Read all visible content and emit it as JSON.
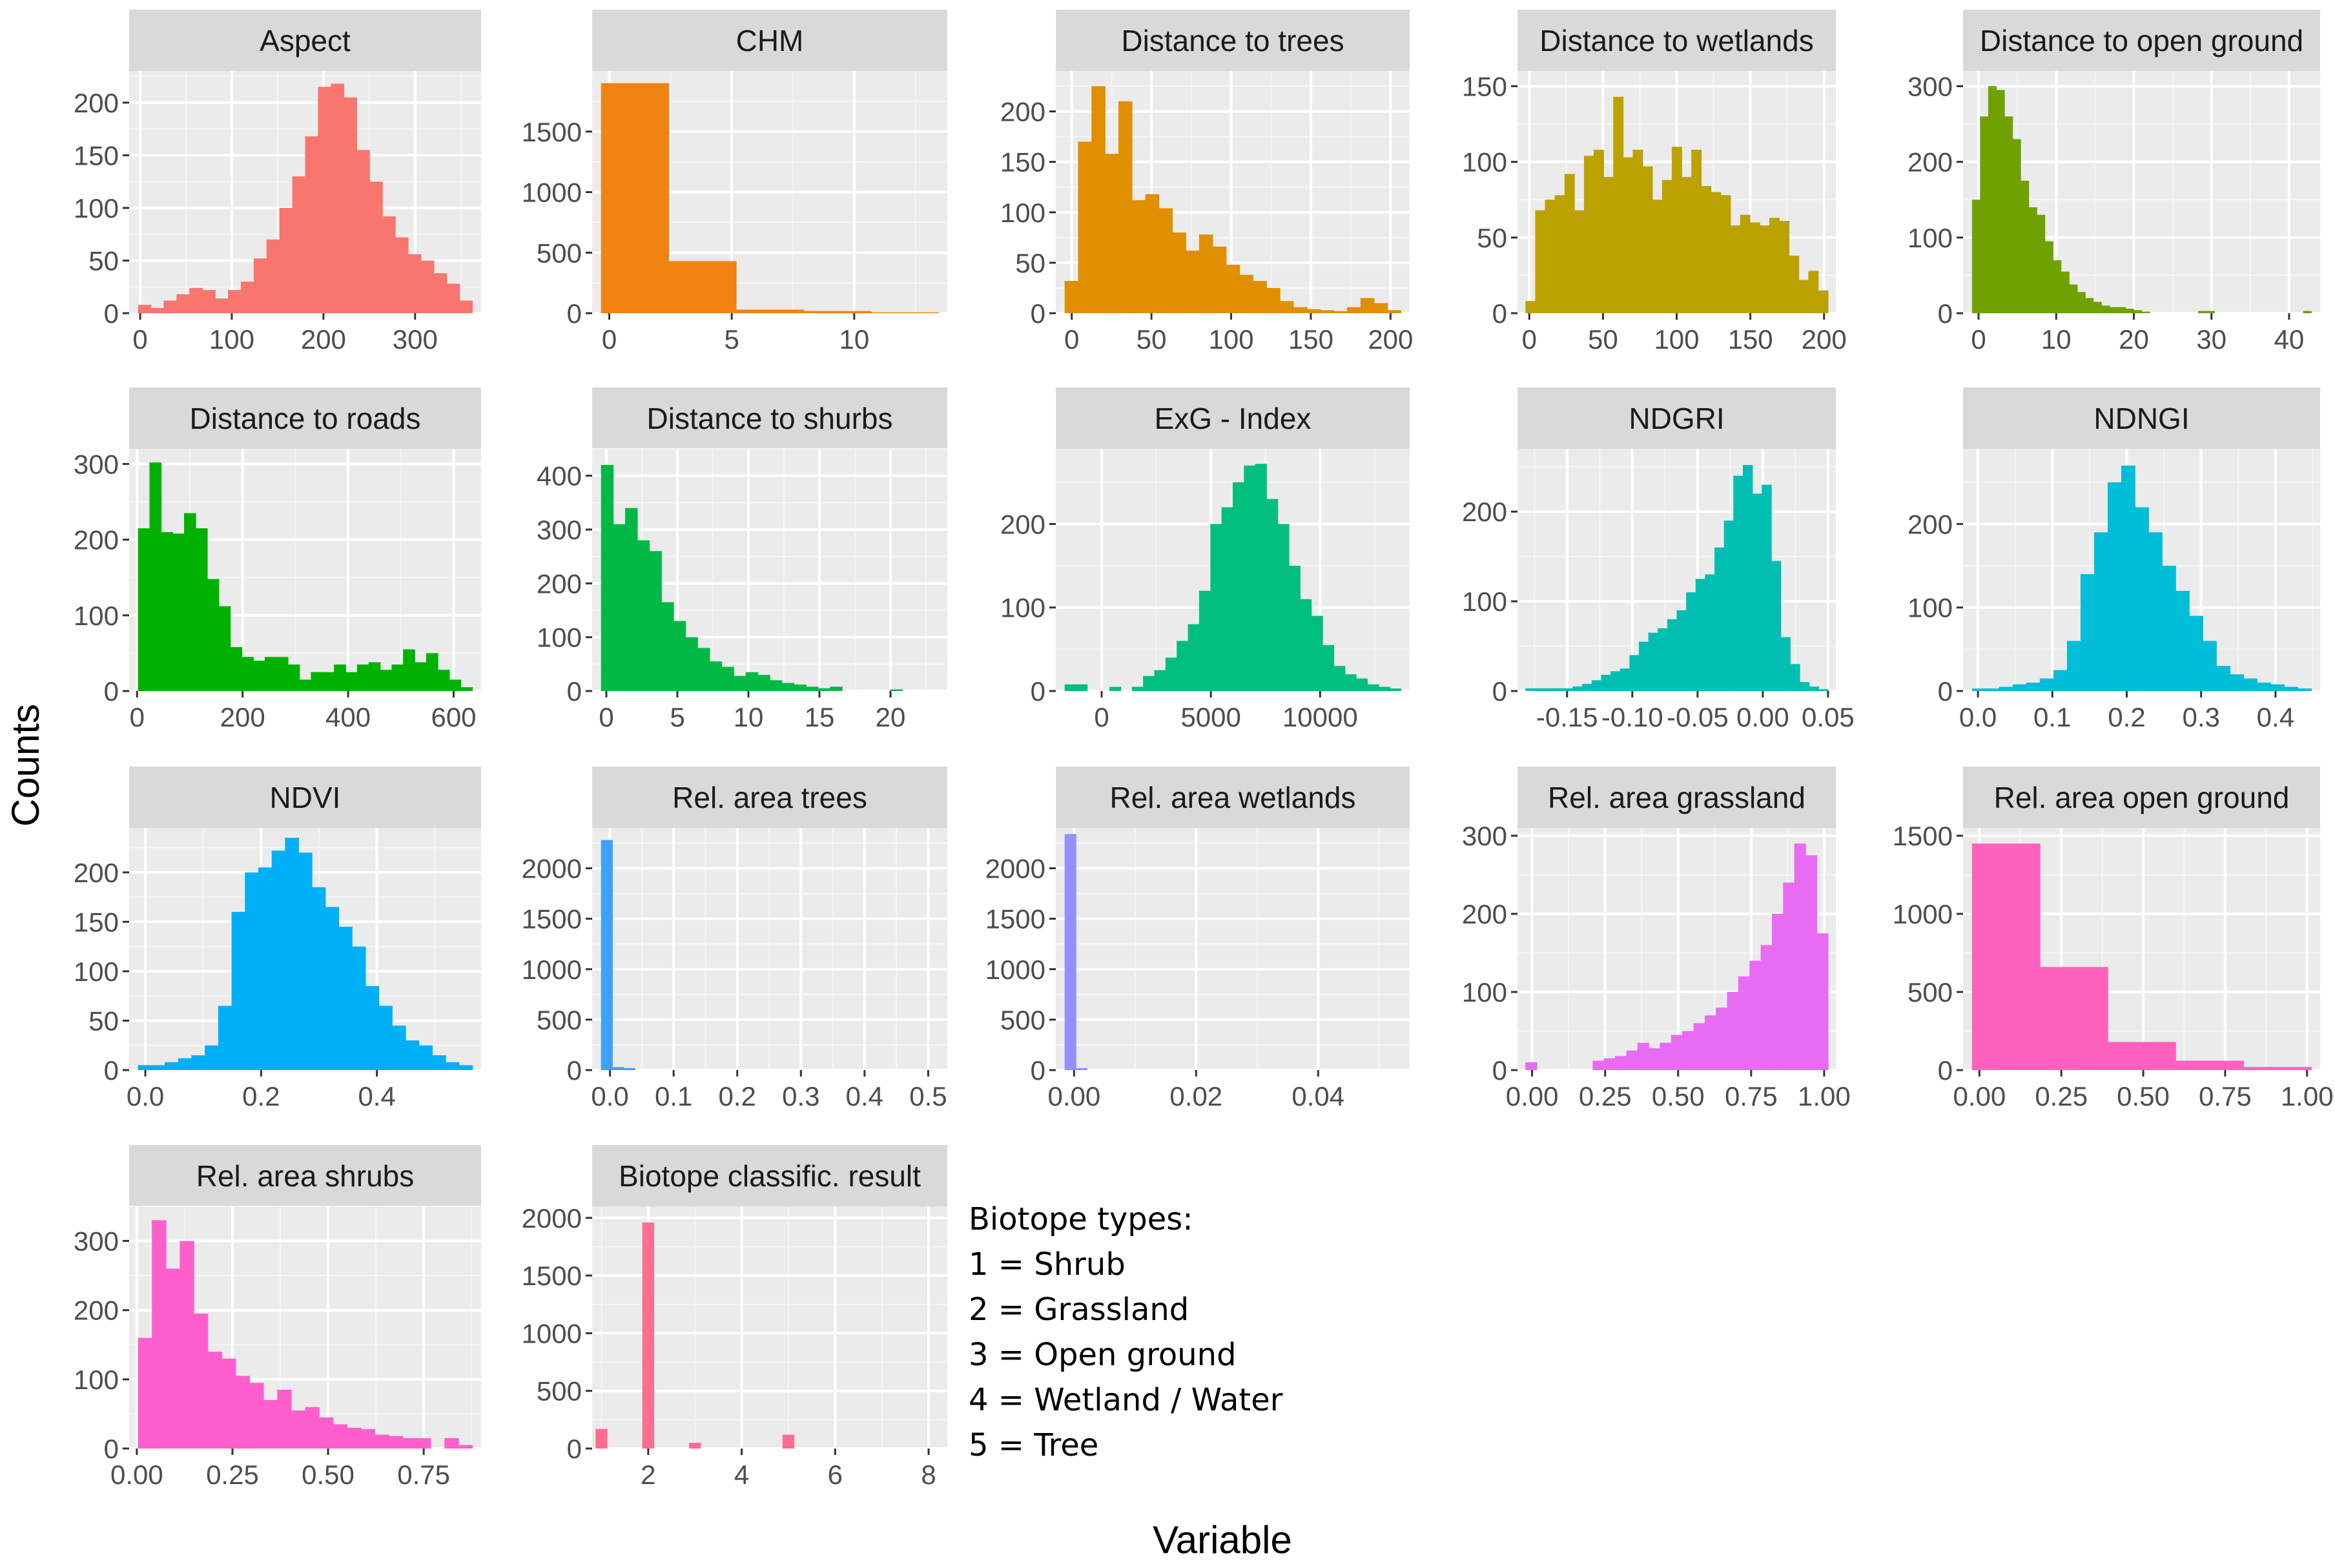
{
  "chart_data": [
    {
      "type": "bar",
      "title": "Aspect",
      "color": "#F8766D",
      "xlim": [
        -12,
        372
      ],
      "ylim": [
        0,
        230
      ],
      "xticks": [
        0,
        100,
        200,
        300
      ],
      "xtick_labels": [
        "0",
        "100",
        "200",
        "300"
      ],
      "yticks": [
        0,
        50,
        100,
        150,
        200
      ],
      "ytick_labels": [
        "0",
        "50",
        "100",
        "150",
        "200"
      ],
      "values": [
        8,
        5,
        12,
        18,
        24,
        22,
        14,
        22,
        30,
        52,
        70,
        100,
        130,
        168,
        215,
        218,
        205,
        155,
        125,
        92,
        72,
        56,
        50,
        38,
        28,
        12
      ]
    },
    {
      "type": "bar",
      "title": "CHM",
      "color": "#F08311",
      "xlim": [
        -0.7,
        13.8
      ],
      "ylim": [
        0,
        2000
      ],
      "xticks": [
        0,
        5,
        10
      ],
      "xtick_labels": [
        "0",
        "5",
        "10"
      ],
      "yticks": [
        0,
        500,
        1000,
        1500
      ],
      "ytick_labels": [
        "0",
        "500",
        "1000",
        "1500"
      ],
      "values": [
        1900,
        430,
        30,
        18,
        8
      ]
    },
    {
      "type": "bar",
      "title": "Distance to trees",
      "color": "#DF8F00",
      "xlim": [
        -10,
        212
      ],
      "ylim": [
        0,
        240
      ],
      "xticks": [
        0,
        50,
        100,
        150,
        200
      ],
      "xtick_labels": [
        "0",
        "50",
        "100",
        "150",
        "200"
      ],
      "yticks": [
        0,
        50,
        100,
        150,
        200
      ],
      "ytick_labels": [
        "0",
        "50",
        "100",
        "150",
        "200"
      ],
      "values": [
        32,
        170,
        225,
        158,
        210,
        112,
        118,
        104,
        80,
        62,
        78,
        66,
        48,
        38,
        32,
        25,
        12,
        6,
        4,
        3,
        2,
        6,
        15,
        10,
        3
      ]
    },
    {
      "type": "bar",
      "title": "Distance to wetlands",
      "color": "#BBA200",
      "xlim": [
        -8,
        208
      ],
      "ylim": [
        0,
        160
      ],
      "xticks": [
        0,
        50,
        100,
        150,
        200
      ],
      "xtick_labels": [
        "0",
        "50",
        "100",
        "150",
        "200"
      ],
      "yticks": [
        0,
        50,
        100,
        150
      ],
      "ytick_labels": [
        "0",
        "50",
        "100",
        "150"
      ],
      "values": [
        8,
        68,
        75,
        78,
        92,
        68,
        104,
        108,
        90,
        143,
        103,
        108,
        97,
        75,
        88,
        110,
        90,
        108,
        84,
        80,
        78,
        58,
        65,
        60,
        58,
        63,
        61,
        38,
        22,
        28,
        15
      ]
    },
    {
      "type": "bar",
      "title": "Distance to open ground",
      "color": "#6FA100",
      "xlim": [
        -2,
        44
      ],
      "ylim": [
        0,
        320
      ],
      "xticks": [
        0,
        10,
        20,
        30,
        40
      ],
      "xtick_labels": [
        "0",
        "10",
        "20",
        "30",
        "40"
      ],
      "yticks": [
        0,
        100,
        200,
        300
      ],
      "ytick_labels": [
        "0",
        "100",
        "200",
        "300"
      ],
      "values": [
        150,
        260,
        300,
        295,
        260,
        230,
        175,
        140,
        130,
        95,
        70,
        55,
        38,
        28,
        20,
        15,
        10,
        8,
        8,
        6,
        4,
        2,
        0,
        0,
        0,
        0,
        0,
        0,
        3,
        3,
        0,
        0,
        0,
        0,
        0,
        0,
        0,
        0,
        0,
        0,
        0,
        3
      ]
    },
    {
      "type": "bar",
      "title": "Distance to roads",
      "color": "#00B200",
      "xlim": [
        -15,
        652
      ],
      "ylim": [
        0,
        320
      ],
      "xticks": [
        0,
        200,
        400,
        600
      ],
      "xtick_labels": [
        "0",
        "200",
        "400",
        "600"
      ],
      "yticks": [
        0,
        100,
        200,
        300
      ],
      "ytick_labels": [
        "0",
        "100",
        "200",
        "300"
      ],
      "values": [
        215,
        302,
        210,
        208,
        235,
        215,
        148,
        112,
        58,
        45,
        40,
        45,
        45,
        35,
        15,
        25,
        25,
        35,
        25,
        35,
        38,
        28,
        35,
        55,
        38,
        50,
        28,
        15,
        5
      ]
    },
    {
      "type": "bar",
      "title": "Distance to shurbs",
      "color": "#00B945",
      "xlim": [
        -1,
        24
      ],
      "ylim": [
        0,
        450
      ],
      "xticks": [
        0,
        5,
        10,
        15,
        20
      ],
      "xtick_labels": [
        "0",
        "5",
        "10",
        "15",
        "20"
      ],
      "yticks": [
        0,
        100,
        200,
        300,
        400
      ],
      "ytick_labels": [
        "0",
        "100",
        "200",
        "300",
        "400"
      ],
      "values": [
        420,
        310,
        340,
        280,
        260,
        165,
        130,
        100,
        80,
        55,
        45,
        28,
        35,
        30,
        20,
        15,
        12,
        8,
        5,
        8,
        0,
        0,
        0,
        0,
        3,
        0,
        0,
        0
      ]
    },
    {
      "type": "bar",
      "title": "ExG - Index",
      "color": "#00BF7D",
      "xlim": [
        -2100,
        14100
      ],
      "ylim": [
        0,
        290
      ],
      "xticks": [
        0,
        5000,
        10000
      ],
      "xtick_labels": [
        "0",
        "5000",
        "10000"
      ],
      "yticks": [
        0,
        100,
        200
      ],
      "ytick_labels": [
        "0",
        "100",
        "200"
      ],
      "values": [
        8,
        8,
        0,
        0,
        5,
        0,
        5,
        18,
        25,
        40,
        60,
        80,
        120,
        200,
        220,
        250,
        270,
        272,
        230,
        200,
        150,
        110,
        90,
        55,
        30,
        20,
        15,
        8,
        5,
        3
      ]
    },
    {
      "type": "bar",
      "title": "NDGRI",
      "color": "#00BFB2",
      "xlim": [
        -0.188,
        0.056
      ],
      "ylim": [
        0,
        270
      ],
      "xticks": [
        -0.15,
        -0.1,
        -0.05,
        0.0,
        0.05
      ],
      "xtick_labels": [
        "-0.15",
        "-0.10",
        "-0.05",
        "0.00",
        "0.05"
      ],
      "yticks": [
        0,
        100,
        200
      ],
      "ytick_labels": [
        "0",
        "100",
        "200"
      ],
      "values": [
        3,
        3,
        3,
        3,
        3,
        5,
        8,
        12,
        18,
        22,
        25,
        40,
        55,
        65,
        70,
        80,
        90,
        110,
        125,
        130,
        160,
        190,
        240,
        252,
        220,
        230,
        145,
        60,
        30,
        10,
        5,
        2
      ]
    },
    {
      "type": "bar",
      "title": "NDNGI",
      "color": "#00BDD8",
      "xlim": [
        -0.02,
        0.46
      ],
      "ylim": [
        0,
        290
      ],
      "xticks": [
        0.0,
        0.1,
        0.2,
        0.3,
        0.4
      ],
      "xtick_labels": [
        "0.0",
        "0.1",
        "0.2",
        "0.3",
        "0.4"
      ],
      "yticks": [
        0,
        100,
        200
      ],
      "ytick_labels": [
        "0",
        "100",
        "200"
      ],
      "values": [
        3,
        3,
        5,
        8,
        10,
        15,
        25,
        60,
        140,
        190,
        250,
        270,
        220,
        190,
        150,
        120,
        90,
        60,
        30,
        20,
        15,
        10,
        8,
        5,
        3
      ]
    },
    {
      "type": "bar",
      "title": "NDVI",
      "color": "#00B0F6",
      "xlim": [
        -0.028,
        0.58
      ],
      "ylim": [
        0,
        245
      ],
      "xticks": [
        0.0,
        0.2,
        0.4
      ],
      "xtick_labels": [
        "0.0",
        "0.2",
        "0.4"
      ],
      "yticks": [
        0,
        50,
        100,
        150,
        200
      ],
      "ytick_labels": [
        "0",
        "50",
        "100",
        "150",
        "200"
      ],
      "values": [
        5,
        5,
        8,
        12,
        15,
        25,
        65,
        160,
        200,
        205,
        222,
        235,
        220,
        185,
        165,
        145,
        125,
        85,
        65,
        45,
        30,
        25,
        15,
        8,
        5
      ]
    },
    {
      "type": "bar",
      "title": "Rel. area trees",
      "color": "#3DA1FF",
      "xlim": [
        -0.028,
        0.53
      ],
      "ylim": [
        0,
        2400
      ],
      "xticks": [
        0.0,
        0.1,
        0.2,
        0.3,
        0.4,
        0.5
      ],
      "xtick_labels": [
        "0.0",
        "0.1",
        "0.2",
        "0.3",
        "0.4",
        "0.5"
      ],
      "yticks": [
        0,
        500,
        1000,
        1500,
        2000
      ],
      "ytick_labels": [
        "0",
        "500",
        "1000",
        "1500",
        "2000"
      ],
      "values": [
        2280,
        30,
        20
      ]
    },
    {
      "type": "bar",
      "title": "Rel. area wetlands",
      "color": "#9590FF",
      "xlim": [
        -0.003,
        0.055
      ],
      "ylim": [
        0,
        2400
      ],
      "xticks": [
        0,
        0.02,
        0.04
      ],
      "xtick_labels": [
        "0.00",
        "0.02",
        "0.04"
      ],
      "yticks": [
        0,
        500,
        1000,
        1500,
        2000
      ],
      "ytick_labels": [
        "0",
        "500",
        "1000",
        "1500",
        "2000"
      ],
      "values": [
        2340,
        20
      ]
    },
    {
      "type": "bar",
      "title": "Rel. area grassland",
      "color": "#E76BF3",
      "xlim": [
        -0.05,
        1.04
      ],
      "ylim": [
        0,
        310
      ],
      "xticks": [
        0.0,
        0.25,
        0.5,
        0.75,
        1.0
      ],
      "xtick_labels": [
        "0.00",
        "0.25",
        "0.50",
        "0.75",
        "1.00"
      ],
      "yticks": [
        0,
        100,
        200,
        300
      ],
      "ytick_labels": [
        "0",
        "100",
        "200",
        "300"
      ],
      "values": [
        10,
        0,
        0,
        0,
        0,
        0,
        12,
        15,
        18,
        25,
        35,
        28,
        35,
        45,
        50,
        60,
        70,
        80,
        100,
        120,
        140,
        160,
        200,
        240,
        290,
        275,
        175
      ]
    },
    {
      "type": "bar",
      "title": "Rel. area open ground",
      "color": "#FF62BC",
      "xlim": [
        -0.05,
        1.04
      ],
      "ylim": [
        0,
        1550
      ],
      "xticks": [
        0.0,
        0.25,
        0.5,
        0.75,
        1.0
      ],
      "xtick_labels": [
        "0.00",
        "0.25",
        "0.50",
        "0.75",
        "1.00"
      ],
      "yticks": [
        0,
        500,
        1000,
        1500
      ],
      "ytick_labels": [
        "0",
        "500",
        "1000",
        "1500"
      ],
      "values": [
        1450,
        660,
        180,
        60,
        20
      ]
    },
    {
      "type": "bar",
      "title": "Rel. area shrubs",
      "color": "#FF5FCD",
      "xlim": [
        -0.02,
        0.9
      ],
      "ylim": [
        0,
        350
      ],
      "xticks": [
        0.0,
        0.25,
        0.5,
        0.75
      ],
      "xtick_labels": [
        "0.00",
        "0.25",
        "0.50",
        "0.75"
      ],
      "yticks": [
        0,
        100,
        200,
        300
      ],
      "ytick_labels": [
        "0",
        "100",
        "200",
        "300"
      ],
      "values": [
        160,
        330,
        260,
        300,
        195,
        140,
        130,
        105,
        95,
        70,
        85,
        55,
        60,
        45,
        35,
        30,
        28,
        20,
        18,
        15,
        15,
        0,
        15,
        5
      ]
    },
    {
      "type": "bar",
      "title": "Biotope classific. result",
      "color": "#FF6C91",
      "xlim": [
        0.8,
        8.4
      ],
      "ylim": [
        0,
        2100
      ],
      "xticks": [
        2,
        4,
        6,
        8
      ],
      "xtick_labels": [
        "2",
        "4",
        "6",
        "8"
      ],
      "yticks": [
        0,
        500,
        1000,
        1500,
        2000
      ],
      "ytick_labels": [
        "0",
        "500",
        "1000",
        "1500",
        "2000"
      ],
      "bars": [
        {
          "x": 1,
          "value": 170
        },
        {
          "x": 2,
          "value": 1960
        },
        {
          "x": 3,
          "value": 50
        },
        {
          "x": 5,
          "value": 120
        }
      ]
    }
  ],
  "legend": {
    "title": "Biotope types:",
    "items": [
      "1 = Shrub",
      "2 = Grassland",
      "3 = Open ground",
      "4 = Wetland / Water",
      "5 = Tree"
    ]
  },
  "axes": {
    "xlabel": "Variable",
    "ylabel": "Counts"
  },
  "colors": {
    "panel_bg": "#EBEBEB",
    "strip_bg": "#D9D9D9",
    "grid_major": "#FFFFFF",
    "tick_text": "#4D4D4D"
  }
}
